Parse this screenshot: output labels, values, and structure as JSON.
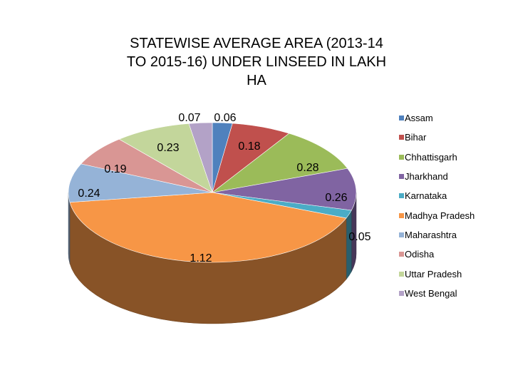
{
  "chart_data": {
    "type": "pie",
    "title_lines": [
      "STATEWISE AVERAGE AREA (2013-14",
      "TO 2015-16)  UNDER LINSEED IN LAKH",
      "HA"
    ],
    "categories": [
      "Assam",
      "Bihar",
      "Chhattisgarh",
      "Jharkhand",
      "Karnataka",
      "Madhya Pradesh",
      "Maharashtra",
      "Odisha",
      "Uttar Pradesh",
      "West Bengal"
    ],
    "values": [
      0.06,
      0.18,
      0.28,
      0.26,
      0.05,
      1.12,
      0.24,
      0.19,
      0.23,
      0.07
    ],
    "value_labels": [
      "0.06",
      "0.18",
      "0.28",
      "0.26",
      "0.05",
      "1.12",
      "0.24",
      "0.19",
      "0.23",
      "0.07"
    ],
    "colors": [
      "#4F81BD",
      "#C0504D",
      "#9BBB59",
      "#8064A2",
      "#4BACC6",
      "#F79646",
      "#95B3D7",
      "#D99694",
      "#C3D69B",
      "#B3A2C7"
    ],
    "legend_position": "right",
    "style": "3d-pie"
  }
}
